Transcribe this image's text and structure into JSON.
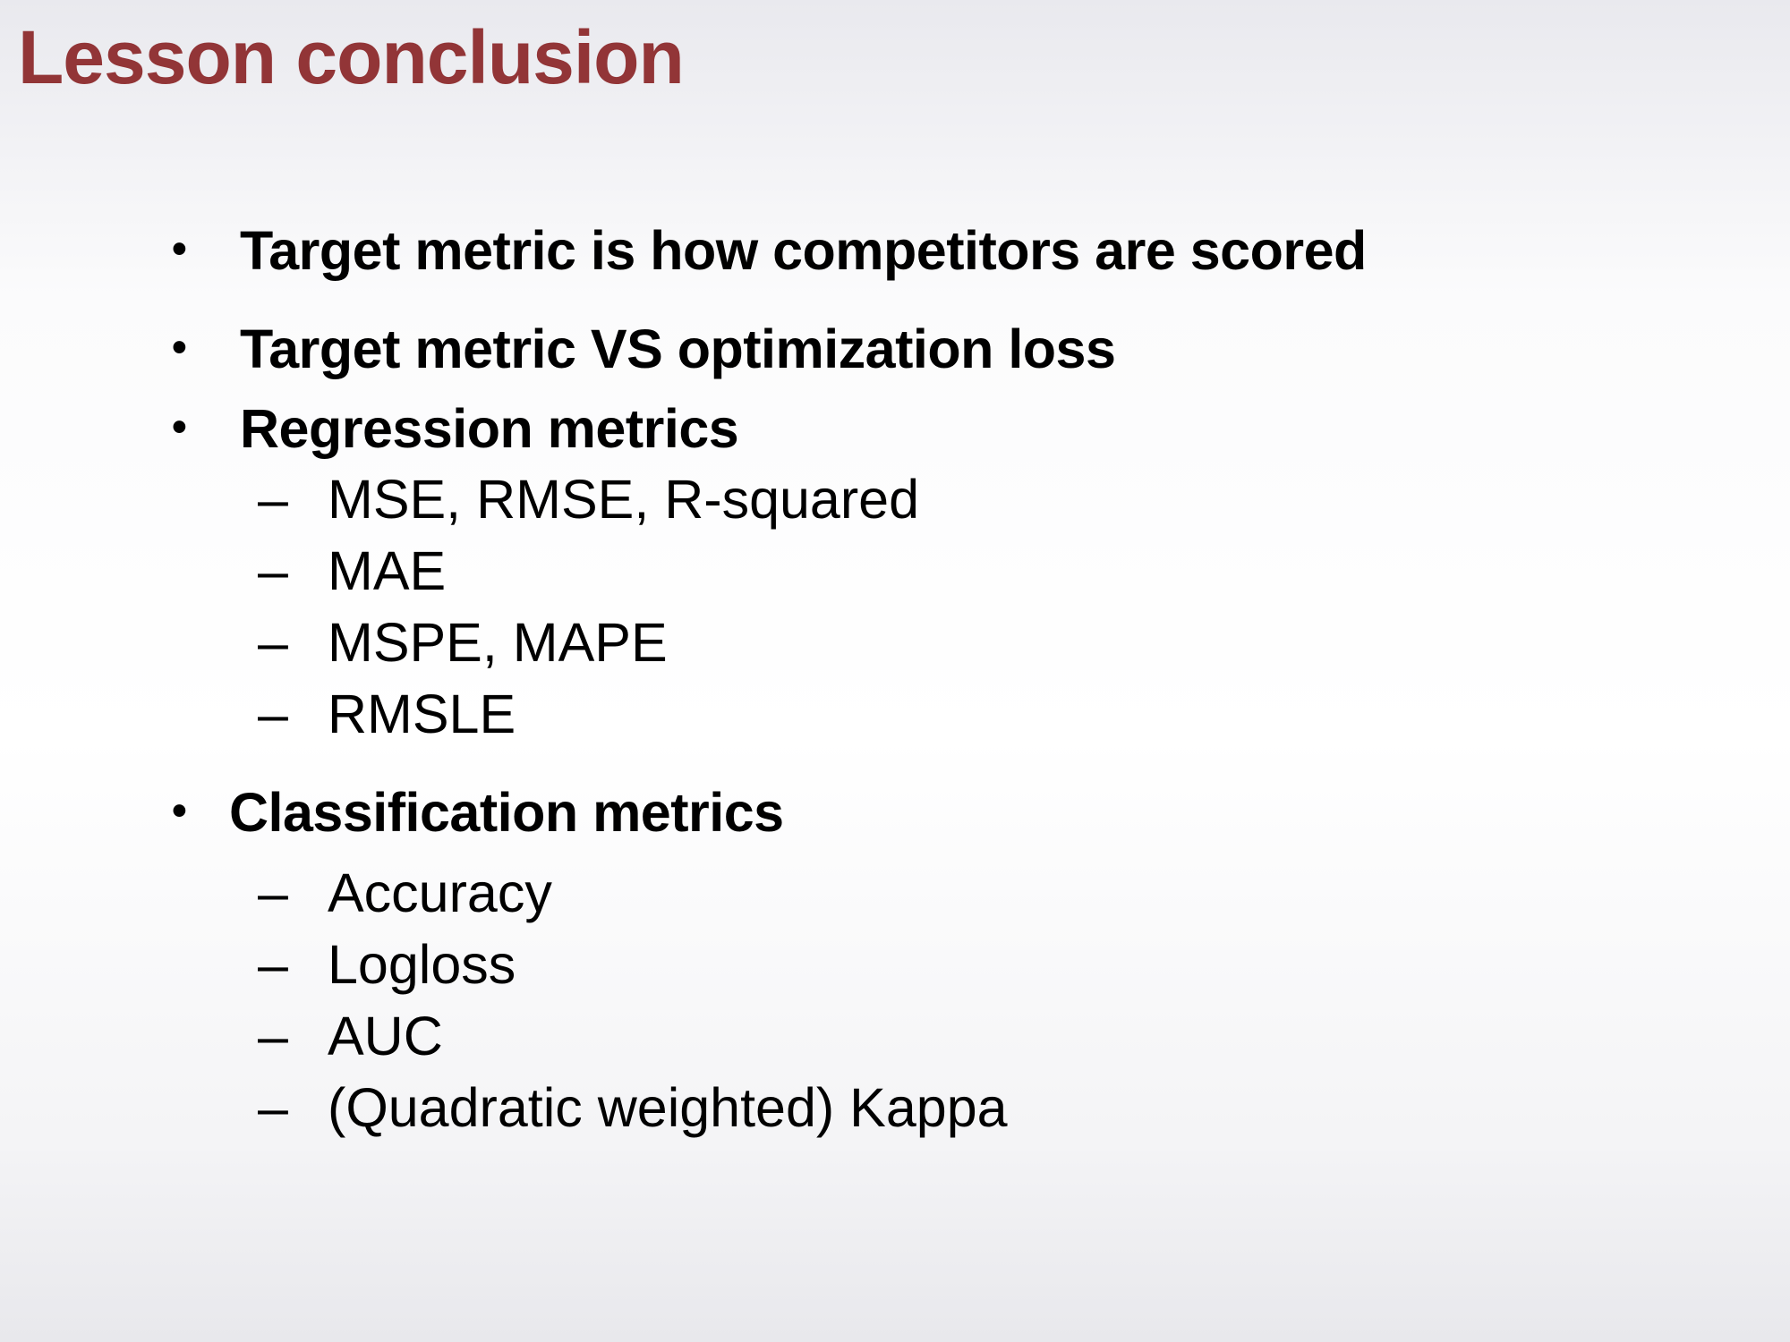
{
  "slide": {
    "title": "Lesson conclusion",
    "colors": {
      "title": "#923537",
      "text": "#000000",
      "background_top": "#e9e9ee",
      "background_middle": "#ffffff",
      "background_bottom": "#e8e8ec"
    },
    "bullet_marker": "•",
    "dash_marker": "–",
    "bullets": [
      {
        "text": "Target metric is how competitors are scored"
      },
      {
        "text": "Target metric VS optimization loss"
      },
      {
        "text": "Regression metrics"
      },
      {
        "text": "Classification metrics"
      }
    ],
    "regression_items": [
      {
        "text": "MSE, RMSE, R-squared"
      },
      {
        "text": "MAE"
      },
      {
        "text": "MSPE, MAPE"
      },
      {
        "text": "RMSLE"
      }
    ],
    "classification_items": [
      {
        "text": "Accuracy"
      },
      {
        "text": "Logloss"
      },
      {
        "text": "AUC"
      },
      {
        "text": "(Quadratic weighted) Kappa"
      }
    ]
  }
}
